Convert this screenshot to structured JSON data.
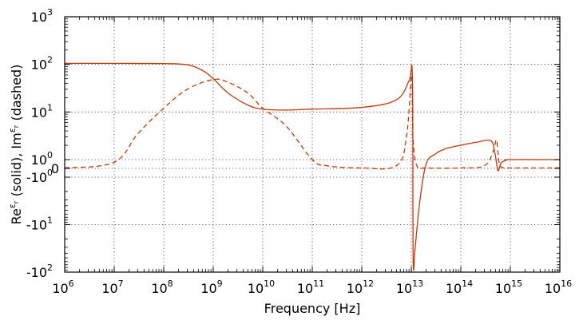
{
  "chart_data": {
    "type": "line",
    "title": "",
    "xlabel": "Frequency [Hz]",
    "ylabel": "Reε r (solid), Imε r (dashed)",
    "ylabel_parts": {
      "re": "Re",
      "eps": "ε",
      "sub": "r",
      "mid": " (solid), Im",
      "end": " (dashed)"
    },
    "x_scale": "log",
    "y_scale": "symlog",
    "xlim": [
      1000000.0,
      1e+16
    ],
    "ylim": [
      -100,
      1000
    ],
    "grid": true,
    "legend": "none",
    "x_ticks": [
      {
        "base": "10",
        "exp": "6"
      },
      {
        "base": "10",
        "exp": "7"
      },
      {
        "base": "10",
        "exp": "8"
      },
      {
        "base": "10",
        "exp": "9"
      },
      {
        "base": "10",
        "exp": "10"
      },
      {
        "base": "10",
        "exp": "11"
      },
      {
        "base": "10",
        "exp": "12"
      },
      {
        "base": "10",
        "exp": "13"
      },
      {
        "base": "10",
        "exp": "14"
      },
      {
        "base": "10",
        "exp": "15"
      },
      {
        "base": "10",
        "exp": "16"
      }
    ],
    "y_ticks": [
      {
        "value": 1000,
        "base": "10",
        "exp": "3"
      },
      {
        "value": 100,
        "base": "10",
        "exp": "2"
      },
      {
        "value": 10,
        "base": "10",
        "exp": "1"
      },
      {
        "value": 1,
        "base": "10",
        "exp": "0"
      },
      {
        "value": 0,
        "base": "0",
        "exp": ""
      },
      {
        "value": -1,
        "base": "-10",
        "exp": "0"
      },
      {
        "value": -10,
        "base": "-10",
        "exp": "1"
      },
      {
        "value": -100,
        "base": "-10",
        "exp": "2"
      }
    ],
    "colors": {
      "series": "#c0390b"
    },
    "series": [
      {
        "style": "solid",
        "x": [
          1000000.0,
          10000000.0,
          100000000.0,
          300000000.0,
          600000000.0,
          1000000000.0,
          2000000000.0,
          5000000000.0,
          10000000000.0,
          30000000000.0,
          100000000000.0,
          1000000000000.0,
          5000000000000.0,
          9000000000000.0,
          10500000000000.0,
          10800000000000.0,
          11000000000000.0,
          12000000000000.0,
          15000000000000.0,
          20000000000000.0,
          30000000000000.0,
          50000000000000.0,
          100000000000000.0,
          200000000000000.0,
          400000000000000.0,
          480000000000000.0,
          530000000000000.0,
          570000000000000.0,
          650000000000000.0,
          800000000000000.0,
          1000000000000000.0,
          1e+16
        ],
        "y": [
          105,
          105,
          104,
          98,
          75,
          50,
          25,
          14,
          11.5,
          11,
          11.5,
          12.5,
          18,
          45,
          60,
          -5,
          -85,
          -30,
          -3,
          0.5,
          1.3,
          1.7,
          2.0,
          2.3,
          2.5,
          1.5,
          0.5,
          -0.3,
          0.6,
          0.9,
          1.0,
          1.0
        ]
      },
      {
        "style": "dashed",
        "x": [
          1000000.0,
          10000000.0,
          30000000.0,
          100000000.0,
          300000000.0,
          1000000000.0,
          2000000000.0,
          5000000000.0,
          10000000000.0,
          30000000000.0,
          100000000000.0,
          200000000000.0,
          1000000000000.0,
          5000000000000.0,
          8000000000000.0,
          10200000000000.0,
          10800000000000.0,
          13000000000000.0,
          20000000000000.0,
          100000000000000.0,
          300000000000000.0,
          450000000000000.0,
          520000000000000.0,
          560000000000000.0,
          600000000000000.0,
          700000000000000.0,
          1000000000000000.0,
          1e+16
        ],
        "y": [
          0.05,
          0.7,
          3.5,
          12,
          30,
          48,
          42,
          25,
          12,
          5,
          1,
          0.3,
          0.05,
          0.3,
          3,
          60,
          3,
          0.3,
          0.05,
          0.05,
          0.3,
          1.5,
          2.6,
          1.5,
          0.5,
          0.1,
          0.05,
          0.05
        ]
      }
    ]
  }
}
